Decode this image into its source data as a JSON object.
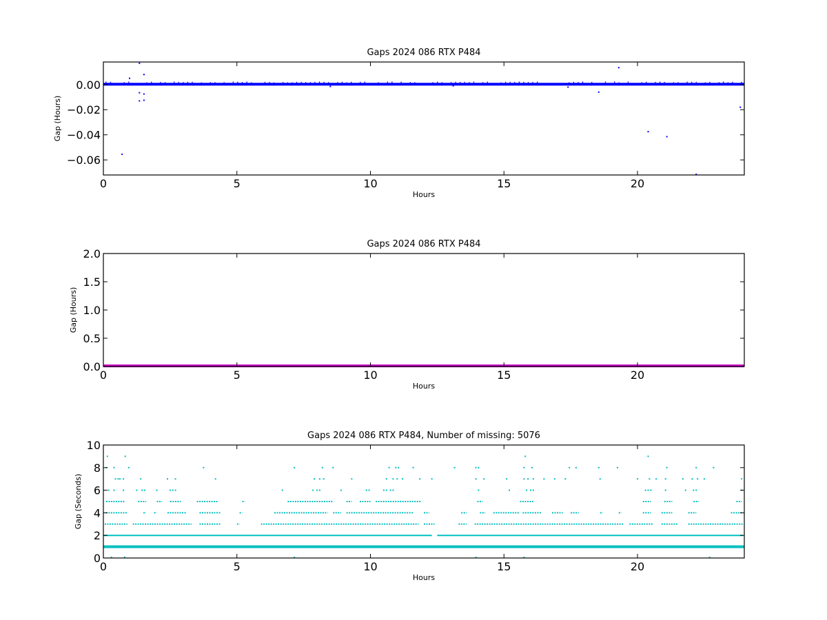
{
  "chart_data": [
    {
      "type": "scatter",
      "title": "Gaps 2024 086 RTX  P484",
      "xlabel": "Hours",
      "ylabel": "Gap (Hours)",
      "xlim": [
        0,
        24
      ],
      "ylim": [
        -0.072,
        0.018
      ],
      "xticks": [
        "0",
        "5",
        "10",
        "15",
        "20"
      ],
      "yticks": [
        "0.00",
        "−0.02",
        "−0.04",
        "−0.06"
      ],
      "color": "#0000ff",
      "series": [
        {
          "baseline_value": 0.0003,
          "points": [
            [
              0.7,
              -0.0555
            ],
            [
              1.35,
              0.017
            ],
            [
              1.35,
              -0.0065
            ],
            [
              1.35,
              -0.013
            ],
            [
              1.52,
              0.008
            ],
            [
              1.52,
              -0.0075
            ],
            [
              1.52,
              -0.0125
            ],
            [
              0.98,
              0.005
            ],
            [
              18.55,
              -0.006
            ],
            [
              19.3,
              0.0135
            ],
            [
              20.4,
              -0.0375
            ],
            [
              21.1,
              -0.0415
            ],
            [
              22.2,
              -0.072
            ],
            [
              23.85,
              -0.018
            ],
            [
              17.4,
              -0.002
            ],
            [
              8.5,
              -0.0015
            ],
            [
              13.1,
              -0.001
            ]
          ]
        }
      ]
    },
    {
      "type": "scatter",
      "title": "Gaps 2024 086 RTX  P484",
      "xlabel": "Hours",
      "ylabel": "Gap (Hours)",
      "xlim": [
        0,
        24
      ],
      "ylim": [
        0,
        2.0
      ],
      "xticks": [
        "0",
        "5",
        "10",
        "15",
        "20"
      ],
      "yticks": [
        "2.0",
        "1.5",
        "1.0",
        "0.5",
        "0.0"
      ],
      "color": "#bf00bf",
      "series": [
        {
          "baseline_value": 0.01,
          "points": []
        }
      ]
    },
    {
      "type": "scatter",
      "title": "Gaps 2024 086 RTX  P484, Number of missing: 5076",
      "xlabel": "Hours",
      "ylabel": "Gap (Seconds)",
      "xlim": [
        0,
        24
      ],
      "ylim": [
        0,
        10
      ],
      "xticks": [
        "0",
        "5",
        "10",
        "15",
        "20"
      ],
      "yticks": [
        "10",
        "8",
        "6",
        "4",
        "2",
        "0"
      ],
      "color": "#00bfbf",
      "series": [
        {
          "baseline_value": 1,
          "points": [
            [
              0.15,
              9
            ],
            [
              0.82,
              9
            ],
            [
              15.8,
              9
            ],
            [
              20.4,
              9
            ],
            [
              0.12,
              8
            ],
            [
              0.4,
              8
            ],
            [
              0.95,
              8
            ],
            [
              3.75,
              8
            ],
            [
              7.15,
              8
            ],
            [
              8.2,
              8
            ],
            [
              8.6,
              8
            ],
            [
              10.7,
              8
            ],
            [
              10.95,
              8
            ],
            [
              11.05,
              8
            ],
            [
              11.6,
              8
            ],
            [
              13.15,
              8
            ],
            [
              13.95,
              8
            ],
            [
              14.05,
              8
            ],
            [
              15.75,
              8
            ],
            [
              16.05,
              8
            ],
            [
              17.45,
              8
            ],
            [
              17.7,
              8
            ],
            [
              18.55,
              8
            ],
            [
              19.25,
              8
            ],
            [
              21.1,
              8
            ],
            [
              22.2,
              8
            ],
            [
              22.85,
              8
            ],
            [
              0.45,
              7
            ],
            [
              0.55,
              7
            ],
            [
              0.62,
              7
            ],
            [
              0.75,
              7
            ],
            [
              1.4,
              7
            ],
            [
              2.4,
              7
            ],
            [
              2.7,
              7
            ],
            [
              4.2,
              7
            ],
            [
              7.9,
              7
            ],
            [
              8.1,
              7
            ],
            [
              8.25,
              7
            ],
            [
              9.3,
              7
            ],
            [
              10.6,
              7
            ],
            [
              10.85,
              7
            ],
            [
              11.0,
              7
            ],
            [
              11.2,
              7
            ],
            [
              11.85,
              7
            ],
            [
              12.3,
              7
            ],
            [
              13.95,
              7
            ],
            [
              14.25,
              7
            ],
            [
              15.1,
              7
            ],
            [
              15.75,
              7
            ],
            [
              15.9,
              7
            ],
            [
              16.1,
              7
            ],
            [
              16.5,
              7
            ],
            [
              16.9,
              7
            ],
            [
              17.3,
              7
            ],
            [
              18.6,
              7
            ],
            [
              20.0,
              7
            ],
            [
              20.45,
              7
            ],
            [
              20.7,
              7
            ],
            [
              21.05,
              7
            ],
            [
              21.7,
              7
            ],
            [
              22.05,
              7
            ],
            [
              22.25,
              7
            ],
            [
              22.5,
              7
            ],
            [
              23.9,
              7
            ],
            [
              0.2,
              6
            ],
            [
              0.4,
              6
            ],
            [
              0.75,
              6
            ],
            [
              1.25,
              6
            ],
            [
              1.45,
              6
            ],
            [
              1.55,
              6
            ],
            [
              2.0,
              6
            ],
            [
              2.5,
              6
            ],
            [
              2.6,
              6
            ],
            [
              2.7,
              6
            ],
            [
              6.7,
              6
            ],
            [
              7.85,
              6
            ],
            [
              8.0,
              6
            ],
            [
              8.1,
              6
            ],
            [
              8.9,
              6
            ],
            [
              9.85,
              6
            ],
            [
              9.95,
              6
            ],
            [
              10.5,
              6
            ],
            [
              10.6,
              6
            ],
            [
              10.75,
              6
            ],
            [
              10.85,
              6
            ],
            [
              14.05,
              6
            ],
            [
              15.2,
              6
            ],
            [
              15.85,
              6
            ],
            [
              16.0,
              6
            ],
            [
              16.1,
              6
            ],
            [
              20.3,
              6
            ],
            [
              20.4,
              6
            ],
            [
              20.5,
              6
            ],
            [
              21.05,
              6
            ],
            [
              21.8,
              6
            ],
            [
              22.1,
              6
            ],
            [
              22.2,
              6
            ],
            [
              23.9,
              6
            ]
          ],
          "bands": [
            {
              "value": 5,
              "ranges": [
                [
                  0.1,
                  0.8
                ],
                [
                  1.3,
                  1.6
                ],
                [
                  2.0,
                  2.2
                ],
                [
                  2.5,
                  2.9
                ],
                [
                  3.5,
                  4.3
                ],
                [
                  5.2,
                  5.3
                ],
                [
                  6.9,
                  8.6
                ],
                [
                  9.1,
                  9.3
                ],
                [
                  9.6,
                  10.0
                ],
                [
                  10.2,
                  11.9
                ],
                [
                  14.0,
                  14.2
                ],
                [
                  15.6,
                  16.1
                ],
                [
                  20.2,
                  20.5
                ],
                [
                  21.0,
                  21.3
                ],
                [
                  22.1,
                  22.3
                ],
                [
                  23.7,
                  23.9
                ]
              ]
            },
            {
              "value": 4,
              "ranges": [
                [
                  0.1,
                  0.9
                ],
                [
                  1.5,
                  1.6
                ],
                [
                  1.9,
                  2.0
                ],
                [
                  2.4,
                  3.1
                ],
                [
                  3.6,
                  4.4
                ],
                [
                  5.1,
                  5.2
                ],
                [
                  6.4,
                  8.4
                ],
                [
                  8.6,
                  8.9
                ],
                [
                  9.1,
                  11.6
                ],
                [
                  12.0,
                  12.2
                ],
                [
                  13.4,
                  13.6
                ],
                [
                  14.1,
                  14.3
                ],
                [
                  14.6,
                  15.6
                ],
                [
                  15.7,
                  16.4
                ],
                [
                  16.8,
                  17.2
                ],
                [
                  17.5,
                  17.8
                ],
                [
                  18.6,
                  18.7
                ],
                [
                  19.3,
                  19.4
                ],
                [
                  20.2,
                  20.5
                ],
                [
                  20.9,
                  21.3
                ],
                [
                  21.9,
                  22.2
                ],
                [
                  23.5,
                  23.95
                ]
              ]
            },
            {
              "value": 3,
              "ranges": [
                [
                  0.05,
                  0.9
                ],
                [
                  1.1,
                  3.3
                ],
                [
                  3.6,
                  4.4
                ],
                [
                  5.0,
                  5.1
                ],
                [
                  5.9,
                  11.8
                ],
                [
                  12.0,
                  12.4
                ],
                [
                  13.3,
                  13.6
                ],
                [
                  13.9,
                  19.5
                ],
                [
                  19.7,
                  20.6
                ],
                [
                  20.9,
                  21.5
                ],
                [
                  21.9,
                  23.95
                ]
              ]
            },
            {
              "value": 2,
              "ranges": [
                [
                  0.0,
                  12.3
                ],
                [
                  12.5,
                  23.95
                ]
              ]
            },
            {
              "value": 0,
              "ranges": []
            }
          ],
          "zero_points": [
            [
              0.3,
              0
            ],
            [
              0.8,
              0
            ],
            [
              7.15,
              0
            ],
            [
              13.95,
              0
            ],
            [
              15.75,
              0
            ],
            [
              22.7,
              0
            ]
          ]
        }
      ]
    }
  ]
}
